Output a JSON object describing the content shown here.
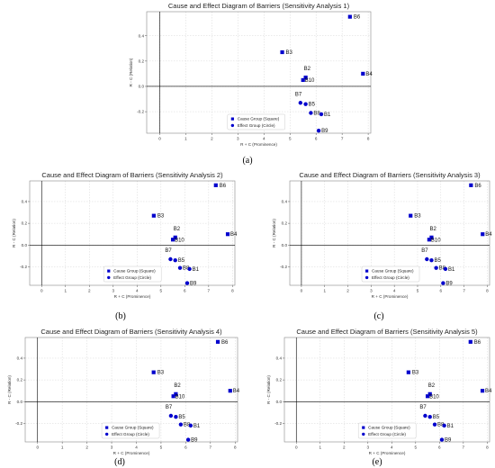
{
  "figure": {
    "panel_labels": [
      "(a)",
      "(b)",
      "(c)",
      "(d)",
      "(e)"
    ],
    "colors": {
      "marker": "#0000CD",
      "axis": "#000000",
      "frame": "#888888",
      "grid": "#cccccc"
    }
  },
  "chart_data": [
    {
      "type": "scatter",
      "title": "Cause and Effect Diagram of Barriers (Sensitivity Analysis 1)",
      "xlabel": "R + C (Prominence)",
      "ylabel": "R - C (Relation)",
      "xlim": [
        -0.5,
        8.1
      ],
      "ylim": [
        -0.37,
        0.59
      ],
      "xticks": [
        0,
        1,
        2,
        3,
        4,
        5,
        6,
        7,
        8
      ],
      "yticks": [
        -0.2,
        0.0,
        0.2,
        0.4
      ],
      "ytick_labels": [
        "-0.2",
        "0.0",
        "0.2",
        "0.4"
      ],
      "grid": true,
      "legend": {
        "position": "lower center",
        "entries": [
          "Cause Group (Square)",
          "Effect Group (Circle)"
        ]
      },
      "points": [
        {
          "label": "B6",
          "x": 7.3,
          "y": 0.55,
          "group": "cause"
        },
        {
          "label": "B3",
          "x": 4.7,
          "y": 0.27,
          "group": "cause"
        },
        {
          "label": "B2",
          "x": 5.6,
          "y": 0.07,
          "group": "cause"
        },
        {
          "label": "B10",
          "x": 5.5,
          "y": 0.05,
          "group": "cause"
        },
        {
          "label": "B4",
          "x": 7.8,
          "y": 0.1,
          "group": "cause"
        },
        {
          "label": "B7",
          "x": 5.4,
          "y": -0.13,
          "group": "effect"
        },
        {
          "label": "B5",
          "x": 5.6,
          "y": -0.14,
          "group": "effect"
        },
        {
          "label": "B8",
          "x": 5.8,
          "y": -0.21,
          "group": "effect"
        },
        {
          "label": "B1",
          "x": 6.2,
          "y": -0.22,
          "group": "effect"
        },
        {
          "label": "B9",
          "x": 6.1,
          "y": -0.35,
          "group": "effect"
        }
      ]
    },
    {
      "type": "scatter",
      "title": "Cause and Effect Diagram of Barriers (Sensitivity Analysis 2)",
      "xlabel": "R + C (Prominence)",
      "ylabel": "R - C (Relation)",
      "xlim": [
        -0.5,
        8.1
      ],
      "ylim": [
        -0.37,
        0.59
      ],
      "xticks": [
        0,
        1,
        2,
        3,
        4,
        5,
        6,
        7,
        8
      ],
      "yticks": [
        -0.2,
        0.0,
        0.2,
        0.4
      ],
      "ytick_labels": [
        "-0.2",
        "0.0",
        "0.2",
        "0.4"
      ],
      "grid": true,
      "legend": {
        "position": "lower center",
        "entries": [
          "Cause Group (Square)",
          "Effect Group (Circle)"
        ]
      },
      "points": [
        {
          "label": "B6",
          "x": 7.3,
          "y": 0.55,
          "group": "cause"
        },
        {
          "label": "B3",
          "x": 4.7,
          "y": 0.27,
          "group": "cause"
        },
        {
          "label": "B2",
          "x": 5.6,
          "y": 0.07,
          "group": "cause"
        },
        {
          "label": "B10",
          "x": 5.5,
          "y": 0.05,
          "group": "cause"
        },
        {
          "label": "B4",
          "x": 7.8,
          "y": 0.1,
          "group": "cause"
        },
        {
          "label": "B7",
          "x": 5.4,
          "y": -0.13,
          "group": "effect"
        },
        {
          "label": "B5",
          "x": 5.6,
          "y": -0.14,
          "group": "effect"
        },
        {
          "label": "B8",
          "x": 5.8,
          "y": -0.21,
          "group": "effect"
        },
        {
          "label": "B1",
          "x": 6.2,
          "y": -0.22,
          "group": "effect"
        },
        {
          "label": "B9",
          "x": 6.1,
          "y": -0.35,
          "group": "effect"
        }
      ]
    },
    {
      "type": "scatter",
      "title": "Cause and Effect Diagram of Barriers (Sensitivity Analysis 3)",
      "xlabel": "R + C (Prominence)",
      "ylabel": "R - C (Relation)",
      "xlim": [
        -0.5,
        8.1
      ],
      "ylim": [
        -0.37,
        0.59
      ],
      "xticks": [
        0,
        1,
        2,
        3,
        4,
        5,
        6,
        7,
        8
      ],
      "yticks": [
        -0.2,
        0.0,
        0.2,
        0.4
      ],
      "ytick_labels": [
        "-0.2",
        "0.0",
        "0.2",
        "0.4"
      ],
      "grid": true,
      "legend": {
        "position": "lower center",
        "entries": [
          "Cause Group (Square)",
          "Effect Group (Circle)"
        ]
      },
      "points": [
        {
          "label": "B6",
          "x": 7.3,
          "y": 0.55,
          "group": "cause"
        },
        {
          "label": "B3",
          "x": 4.7,
          "y": 0.27,
          "group": "cause"
        },
        {
          "label": "B2",
          "x": 5.6,
          "y": 0.07,
          "group": "cause"
        },
        {
          "label": "B10",
          "x": 5.5,
          "y": 0.05,
          "group": "cause"
        },
        {
          "label": "B4",
          "x": 7.8,
          "y": 0.1,
          "group": "cause"
        },
        {
          "label": "B7",
          "x": 5.4,
          "y": -0.13,
          "group": "effect"
        },
        {
          "label": "B5",
          "x": 5.6,
          "y": -0.14,
          "group": "effect"
        },
        {
          "label": "B8",
          "x": 5.8,
          "y": -0.21,
          "group": "effect"
        },
        {
          "label": "B1",
          "x": 6.2,
          "y": -0.22,
          "group": "effect"
        },
        {
          "label": "B9",
          "x": 6.1,
          "y": -0.35,
          "group": "effect"
        }
      ]
    },
    {
      "type": "scatter",
      "title": "Cause and Effect Diagram of Barriers (Sensitivity Analysis 4)",
      "xlabel": "R + C (Prominence)",
      "ylabel": "R - C (Relation)",
      "xlim": [
        -0.5,
        8.1
      ],
      "ylim": [
        -0.37,
        0.59
      ],
      "xticks": [
        0,
        1,
        2,
        3,
        4,
        5,
        6,
        7,
        8
      ],
      "yticks": [
        -0.2,
        0.0,
        0.2,
        0.4
      ],
      "ytick_labels": [
        "-0.2",
        "0.0",
        "0.2",
        "0.4"
      ],
      "grid": true,
      "legend": {
        "position": "lower center",
        "entries": [
          "Cause Group (Square)",
          "Effect Group (Circle)"
        ]
      },
      "points": [
        {
          "label": "B6",
          "x": 7.3,
          "y": 0.55,
          "group": "cause"
        },
        {
          "label": "B3",
          "x": 4.7,
          "y": 0.27,
          "group": "cause"
        },
        {
          "label": "B2",
          "x": 5.6,
          "y": 0.07,
          "group": "cause"
        },
        {
          "label": "B10",
          "x": 5.5,
          "y": 0.05,
          "group": "cause"
        },
        {
          "label": "B4",
          "x": 7.8,
          "y": 0.1,
          "group": "cause"
        },
        {
          "label": "B7",
          "x": 5.4,
          "y": -0.13,
          "group": "effect"
        },
        {
          "label": "B5",
          "x": 5.6,
          "y": -0.14,
          "group": "effect"
        },
        {
          "label": "B8",
          "x": 5.8,
          "y": -0.21,
          "group": "effect"
        },
        {
          "label": "B1",
          "x": 6.2,
          "y": -0.22,
          "group": "effect"
        },
        {
          "label": "B9",
          "x": 6.1,
          "y": -0.35,
          "group": "effect"
        }
      ]
    },
    {
      "type": "scatter",
      "title": "Cause and Effect Diagram of Barriers (Sensitivity Analysis 5)",
      "xlabel": "R + C (Prominence)",
      "ylabel": "R - C (Relation)",
      "xlim": [
        -0.5,
        8.1
      ],
      "ylim": [
        -0.37,
        0.59
      ],
      "xticks": [
        0,
        1,
        2,
        3,
        4,
        5,
        6,
        7,
        8
      ],
      "yticks": [
        -0.2,
        0.0,
        0.2,
        0.4
      ],
      "ytick_labels": [
        "-0.2",
        "0.0",
        "0.2",
        "0.4"
      ],
      "grid": true,
      "legend": {
        "position": "lower center",
        "entries": [
          "Cause Group (Square)",
          "Effect Group (Circle)"
        ]
      },
      "points": [
        {
          "label": "B6",
          "x": 7.3,
          "y": 0.55,
          "group": "cause"
        },
        {
          "label": "B3",
          "x": 4.7,
          "y": 0.27,
          "group": "cause"
        },
        {
          "label": "B2",
          "x": 5.6,
          "y": 0.07,
          "group": "cause"
        },
        {
          "label": "B10",
          "x": 5.5,
          "y": 0.05,
          "group": "cause"
        },
        {
          "label": "B4",
          "x": 7.8,
          "y": 0.1,
          "group": "cause"
        },
        {
          "label": "B7",
          "x": 5.4,
          "y": -0.13,
          "group": "effect"
        },
        {
          "label": "B5",
          "x": 5.6,
          "y": -0.14,
          "group": "effect"
        },
        {
          "label": "B8",
          "x": 5.8,
          "y": -0.21,
          "group": "effect"
        },
        {
          "label": "B1",
          "x": 6.2,
          "y": -0.22,
          "group": "effect"
        },
        {
          "label": "B9",
          "x": 6.1,
          "y": -0.35,
          "group": "effect"
        }
      ]
    }
  ]
}
